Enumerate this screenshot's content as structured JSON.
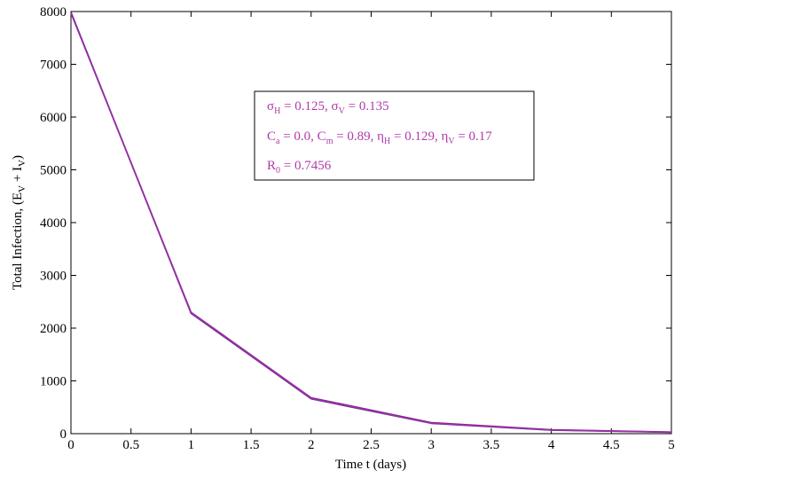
{
  "chart_data": {
    "type": "line",
    "title": "",
    "xlabel": "Time t (days)",
    "ylabel": {
      "prefix": "Total Infection, (E",
      "sub1": "V",
      "mid": " + I",
      "sub2": "V",
      "suffix": ")"
    },
    "xlim": [
      0,
      5
    ],
    "ylim": [
      0,
      8000
    ],
    "x_ticks": [
      0,
      0.5,
      1,
      1.5,
      2,
      2.5,
      3,
      3.5,
      4,
      4.5,
      5
    ],
    "y_ticks": [
      0,
      1000,
      2000,
      3000,
      4000,
      5000,
      6000,
      7000,
      8000
    ],
    "grid": false,
    "series": [
      {
        "color": "#7a1f7e",
        "x": [
          0,
          1,
          2,
          3,
          4,
          5
        ],
        "y": [
          7980,
          2300,
          680,
          210,
          75,
          30
        ]
      },
      {
        "color": "#5a2a8a",
        "x": [
          0,
          1,
          2,
          3,
          4,
          5
        ],
        "y": [
          7990,
          2280,
          660,
          195,
          65,
          25
        ]
      },
      {
        "color": "#9b30a8",
        "x": [
          0,
          1,
          2,
          3,
          4,
          5
        ],
        "y": [
          7970,
          2290,
          670,
          200,
          70,
          28
        ]
      }
    ],
    "annotation": {
      "color": "#b03aa8",
      "line1": [
        {
          "t": "σ"
        },
        {
          "t": "H",
          "sub": true
        },
        {
          "t": " = 0.125, σ"
        },
        {
          "t": "V",
          "sub": true
        },
        {
          "t": " = 0.135"
        }
      ],
      "line2": [
        {
          "t": "C"
        },
        {
          "t": "a",
          "sub": true
        },
        {
          "t": " = 0.0, C"
        },
        {
          "t": "m",
          "sub": true
        },
        {
          "t": " = 0.89, η"
        },
        {
          "t": "H",
          "sub": true
        },
        {
          "t": " = 0.129, η"
        },
        {
          "t": "V",
          "sub": true
        },
        {
          "t": " = 0.17"
        }
      ],
      "line3": [
        {
          "t": "R"
        },
        {
          "t": "0",
          "sub": true
        },
        {
          "t": " = 0.7456"
        }
      ]
    }
  }
}
